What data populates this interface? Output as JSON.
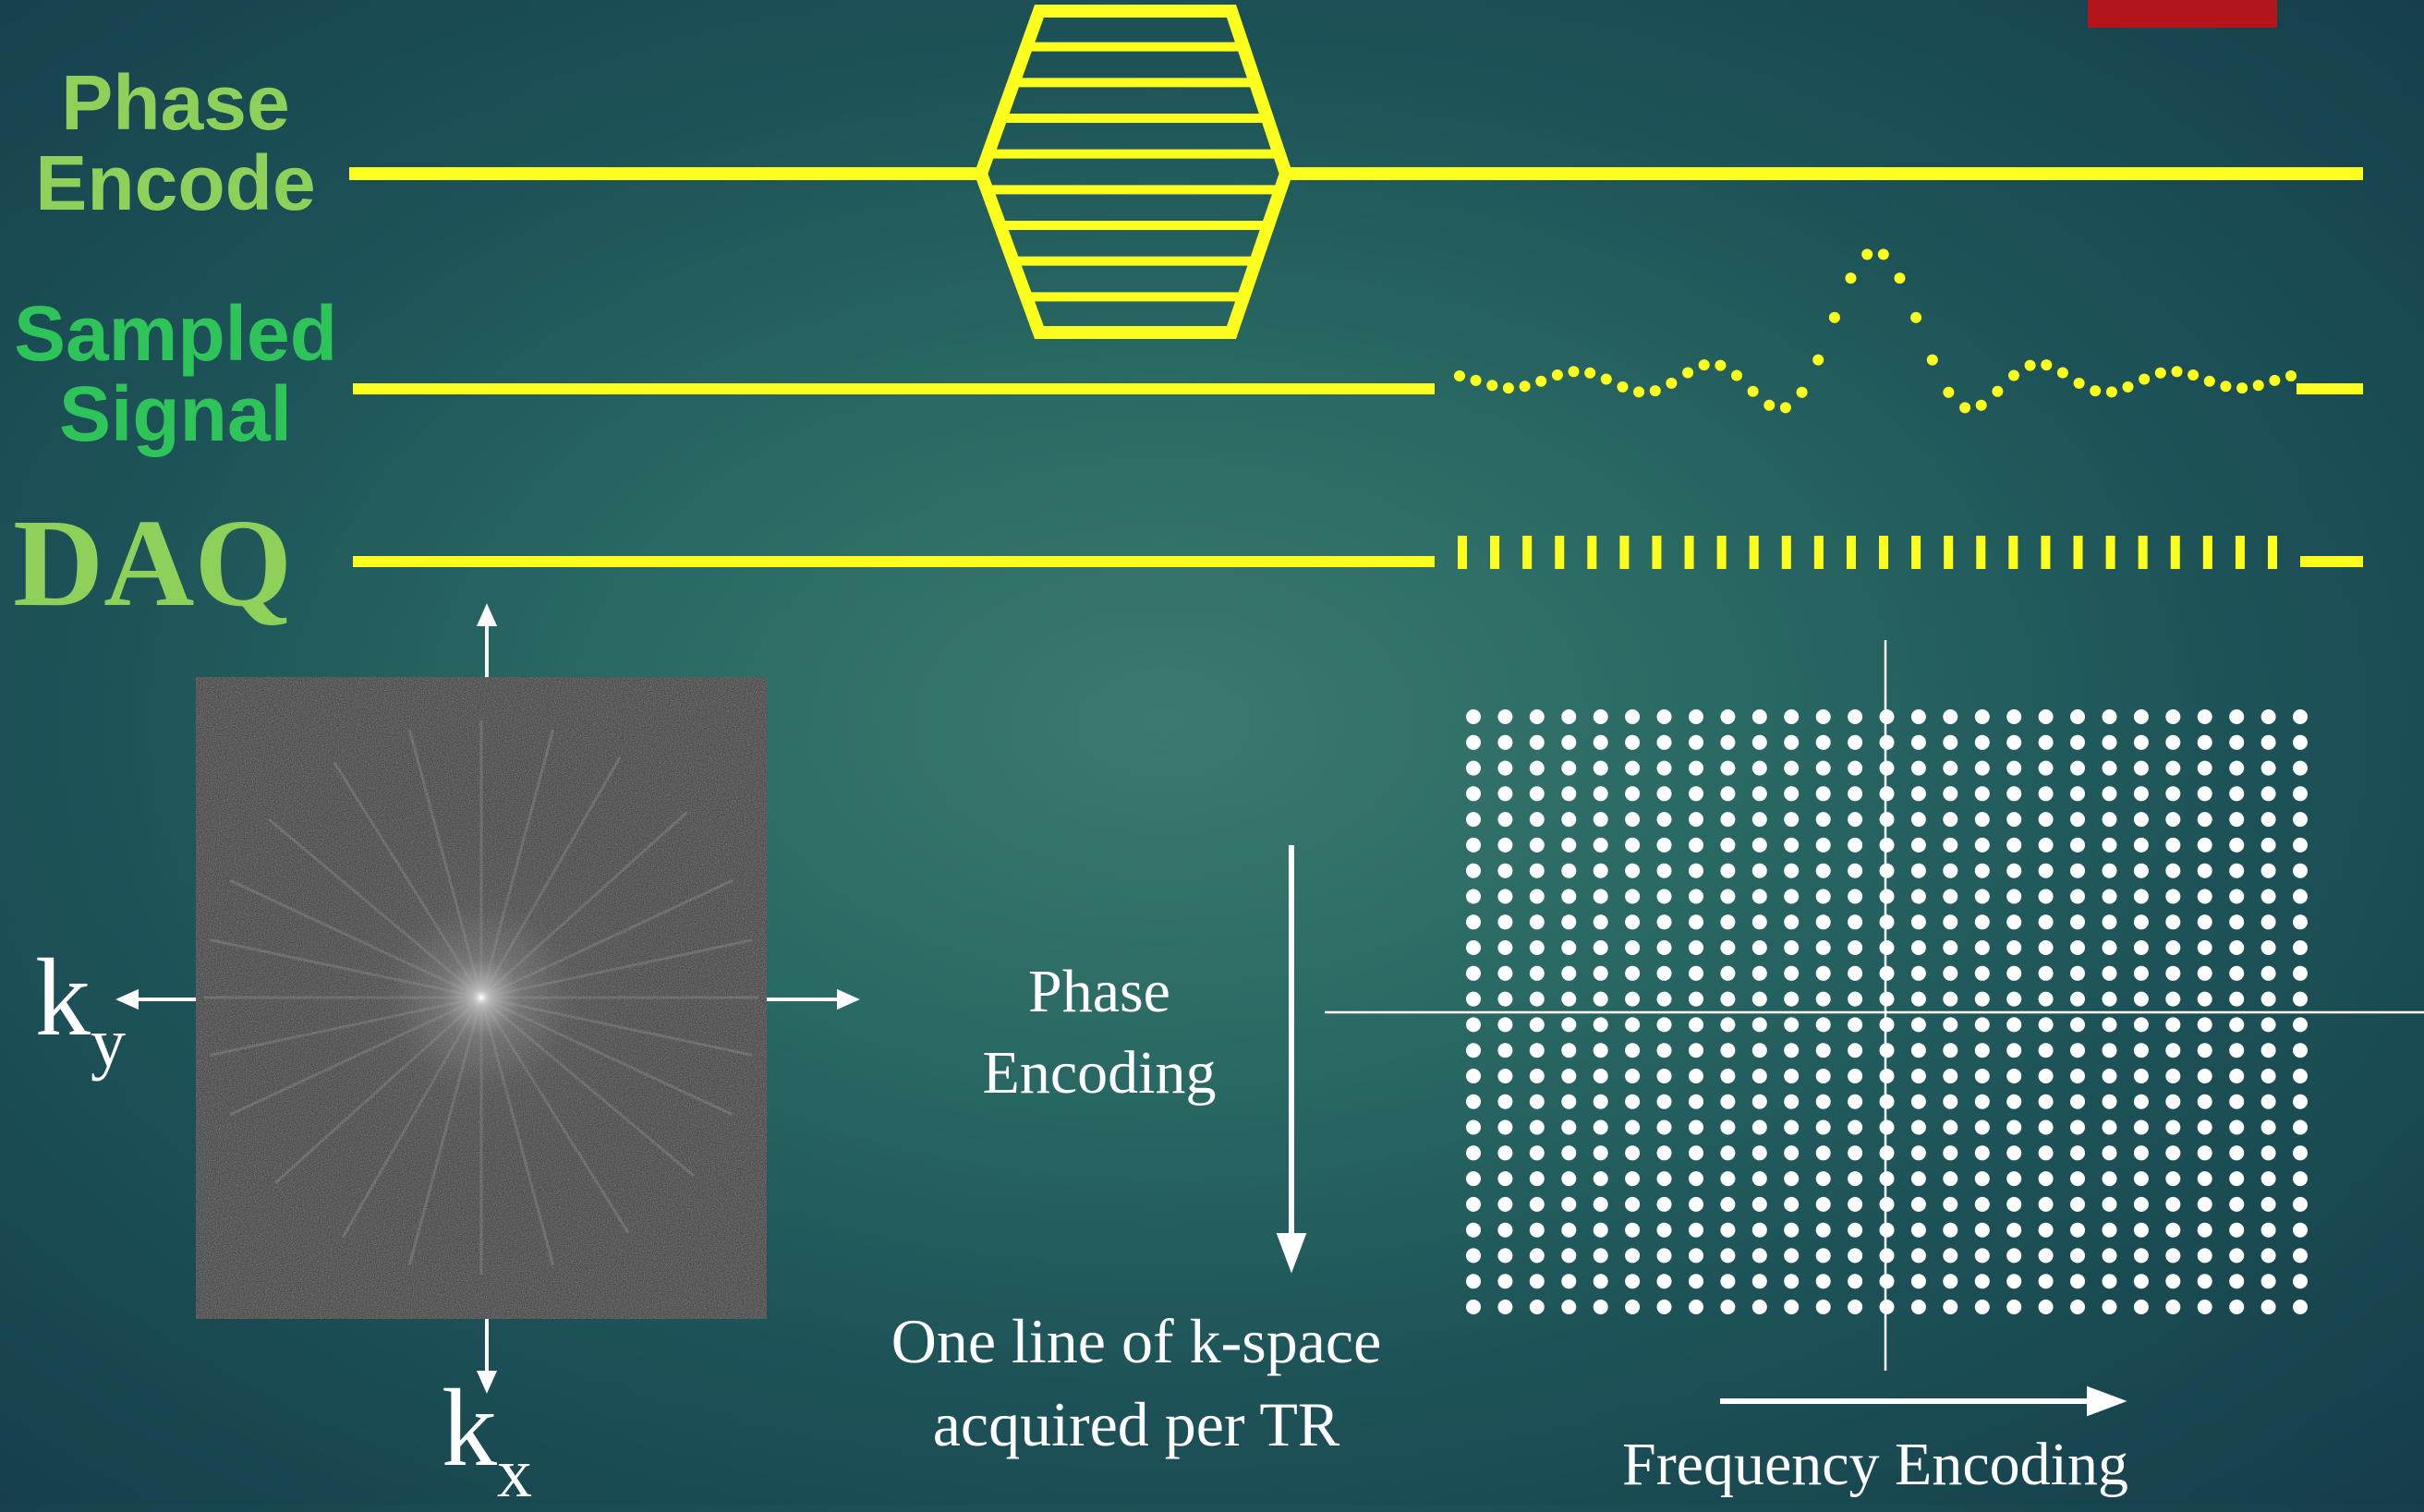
{
  "labels": {
    "phase_encode": "Phase Encode",
    "sampled_signal": "Sampled Signal",
    "daq": "DAQ",
    "phase_encoding": "Phase Encoding",
    "kspace_caption": "One line of k-space acquired per TR",
    "frequency_encoding": "Frequency Encoding",
    "ky_base": "k",
    "ky_sub": "y",
    "kx_base": "k",
    "kx_sub": "x"
  },
  "colors": {
    "trace": "#ffff1e",
    "label_green": "#8ed05a",
    "signal_label_green": "#2fc45a",
    "accent_red": "#b3161a",
    "grid_dot": "#ffffff"
  },
  "kspace_grid": {
    "rows": 24,
    "cols": 27
  },
  "phase_encode_steps": 9,
  "daq_samples": 26
}
